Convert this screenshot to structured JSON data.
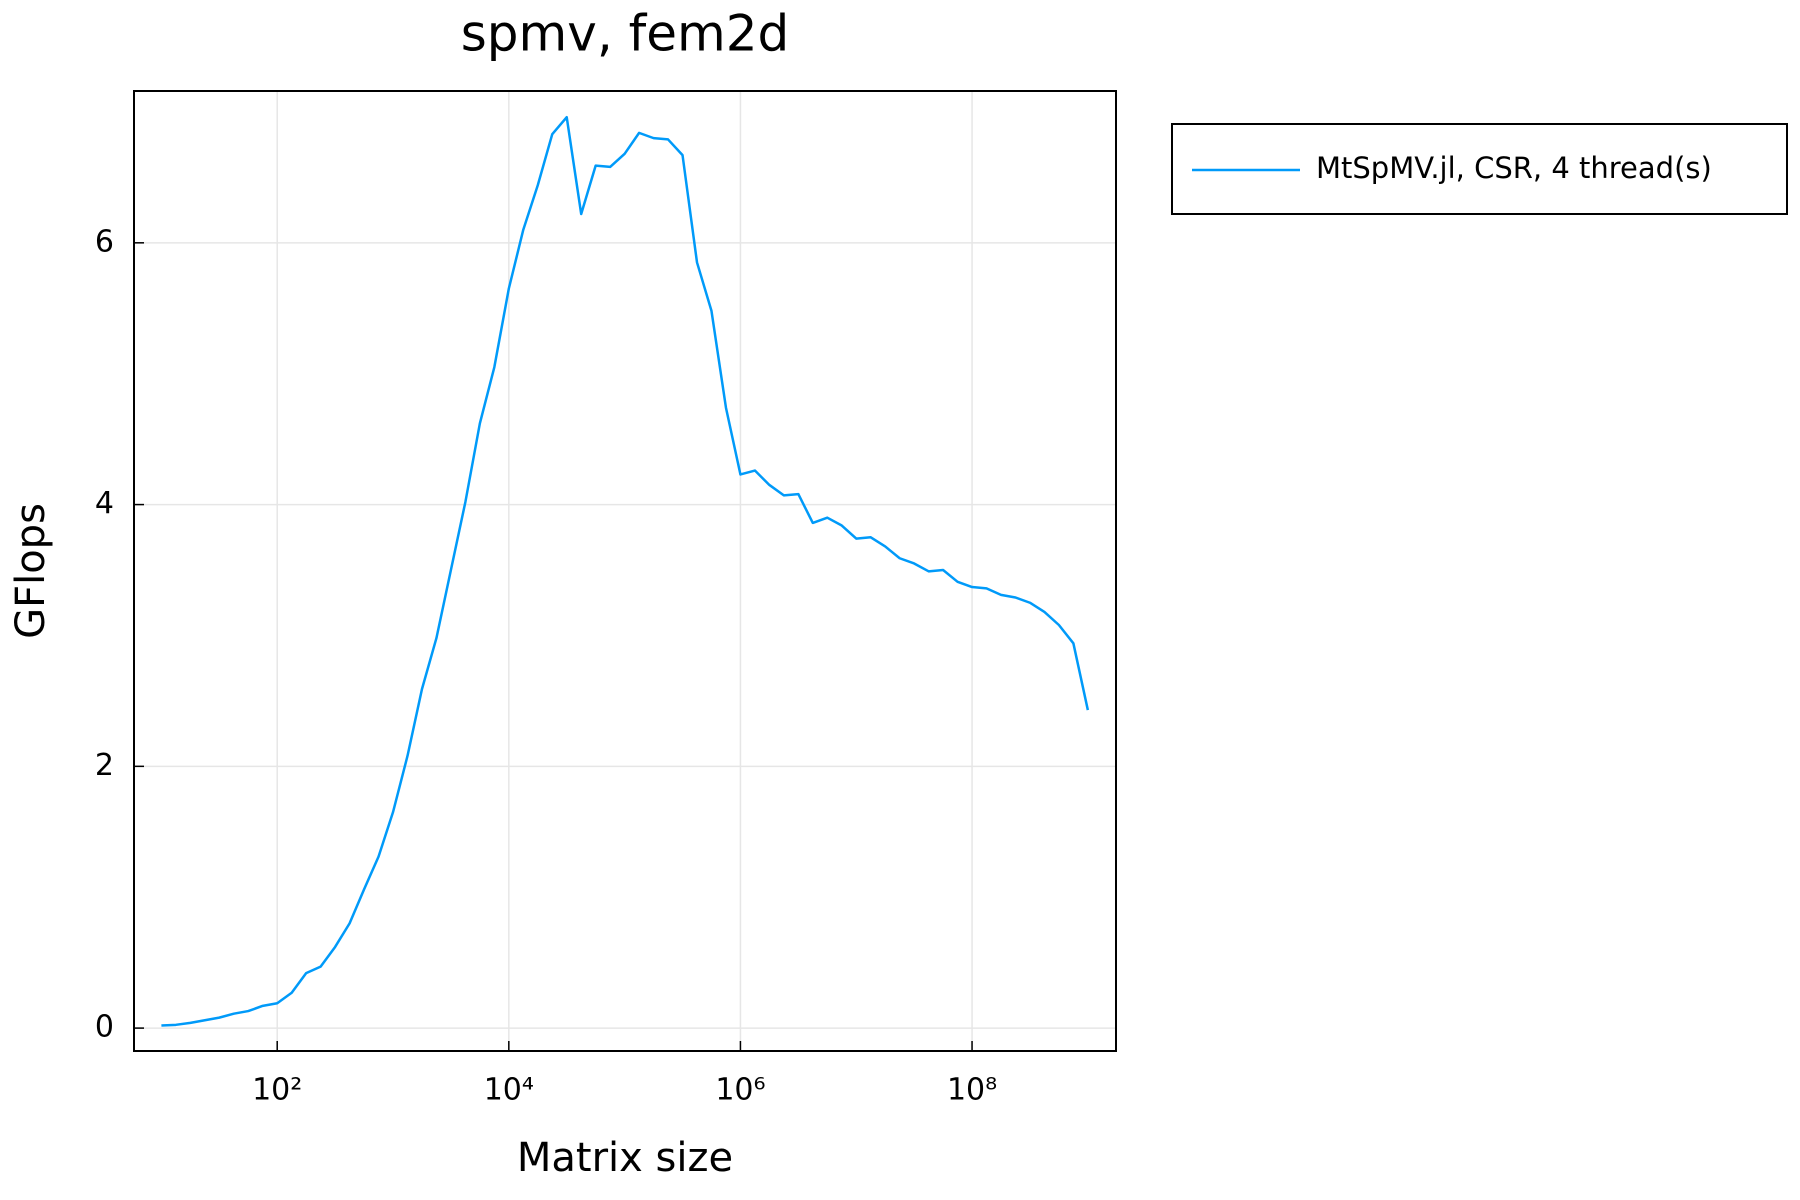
{
  "chart_data": {
    "type": "line",
    "title": "spmv, fem2d",
    "xlabel": "Matrix size",
    "ylabel": "GFlops",
    "log_x": true,
    "grid": true,
    "legend": "outer top right",
    "x": [
      10,
      13.34,
      17.78,
      23.71,
      31.62,
      42.17,
      56.23,
      74.99,
      100,
      133.4,
      177.8,
      237.1,
      316.2,
      421.7,
      562.3,
      749.9,
      1000,
      1334,
      1778,
      2371,
      3162,
      4217,
      5623,
      7499,
      10000,
      13335,
      17783,
      23714,
      31623,
      42170,
      56234,
      74989,
      100000,
      133352,
      177828,
      237137,
      316228,
      421697,
      562341,
      749894,
      1000000,
      1333521,
      1778279,
      2371374,
      3162278,
      4216965,
      5623413,
      7498942,
      10000000,
      13335214,
      17782794,
      23713737,
      31622777,
      42169650,
      56234133,
      74989421,
      100000000,
      133352143,
      177827941,
      237137371,
      316227766,
      421696503,
      562341325,
      749894209,
      1000000000
    ],
    "series": [
      {
        "name": "MtSpMV.jl, CSR, 4 thread(s)",
        "color": "#009af9",
        "values": [
          0.02,
          0.025,
          0.04,
          0.06,
          0.08,
          0.11,
          0.13,
          0.17,
          0.19,
          0.27,
          0.42,
          0.47,
          0.62,
          0.8,
          1.06,
          1.31,
          1.65,
          2.08,
          2.59,
          2.98,
          3.5,
          4.02,
          4.62,
          5.05,
          5.65,
          6.1,
          6.44,
          6.83,
          6.96,
          6.22,
          6.59,
          6.58,
          6.68,
          6.84,
          6.8,
          6.79,
          6.67,
          5.85,
          5.48,
          4.74,
          4.23,
          4.26,
          4.15,
          4.07,
          4.08,
          3.86,
          3.9,
          3.84,
          3.74,
          3.75,
          3.68,
          3.59,
          3.55,
          3.49,
          3.5,
          3.41,
          3.37,
          3.36,
          3.31,
          3.29,
          3.25,
          3.18,
          3.08,
          2.94,
          2.43
        ]
      }
    ],
    "xlim": [
      5.8,
      1750000000
    ],
    "xticks": [
      {
        "value": 100,
        "label": "10²"
      },
      {
        "value": 10000,
        "label": "10⁴"
      },
      {
        "value": 1000000,
        "label": "10⁶"
      },
      {
        "value": 100000000,
        "label": "10⁸"
      }
    ],
    "ylim": [
      -0.175,
      7.16
    ],
    "yticks": [
      0,
      2,
      4,
      6
    ]
  }
}
